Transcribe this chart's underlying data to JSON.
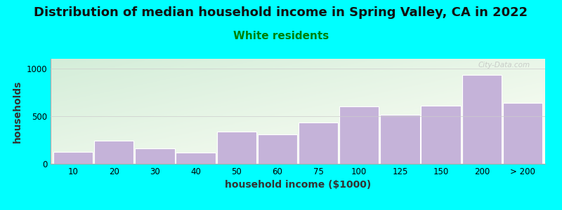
{
  "title": "Distribution of median household income in Spring Valley, CA in 2022",
  "subtitle": "White residents",
  "xlabel": "household income ($1000)",
  "ylabel": "households",
  "background_color": "#00FFFF",
  "bar_color": "#c5b3d9",
  "bar_edge_color": "#ffffff",
  "categories": [
    "10",
    "20",
    "30",
    "40",
    "50",
    "60",
    "75",
    "100",
    "125",
    "150",
    "200",
    "> 200"
  ],
  "values": [
    125,
    240,
    165,
    120,
    340,
    305,
    430,
    600,
    510,
    610,
    930,
    640
  ],
  "ylim": [
    0,
    1100
  ],
  "yticks": [
    0,
    500,
    1000
  ],
  "title_fontsize": 13,
  "subtitle_fontsize": 11,
  "subtitle_color": "#008000",
  "axis_label_fontsize": 10,
  "tick_fontsize": 8.5,
  "watermark": "City-Data.com",
  "grad_top_left": "#d4edda",
  "grad_bottom_right": "#f0f0f8"
}
